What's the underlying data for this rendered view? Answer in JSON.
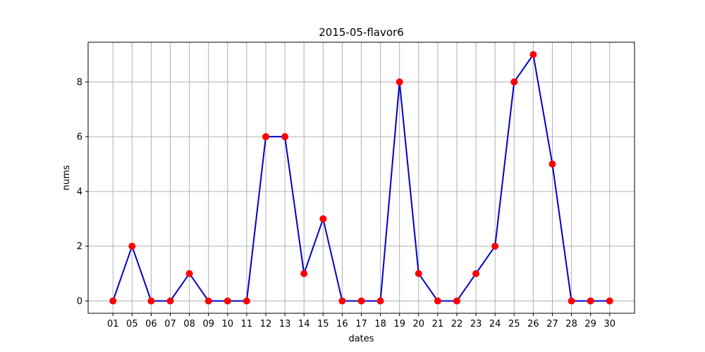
{
  "chart_data": {
    "type": "line",
    "title": "2015-05-flavor6",
    "xlabel": "dates",
    "ylabel": "nums",
    "categories": [
      "01",
      "05",
      "06",
      "07",
      "08",
      "09",
      "10",
      "11",
      "12",
      "13",
      "14",
      "15",
      "16",
      "17",
      "18",
      "19",
      "20",
      "21",
      "22",
      "23",
      "24",
      "25",
      "26",
      "27",
      "28",
      "29",
      "30"
    ],
    "values": [
      0,
      2,
      0,
      0,
      1,
      0,
      0,
      0,
      6,
      6,
      1,
      3,
      0,
      0,
      0,
      8,
      1,
      0,
      0,
      1,
      2,
      8,
      9,
      5,
      0,
      0,
      0
    ],
    "yticks": [
      0,
      2,
      4,
      6,
      8
    ],
    "ylim": [
      -0.45,
      9.45
    ],
    "grid": true,
    "line_color": "#0000cd",
    "marker_color": "#ff0000"
  }
}
